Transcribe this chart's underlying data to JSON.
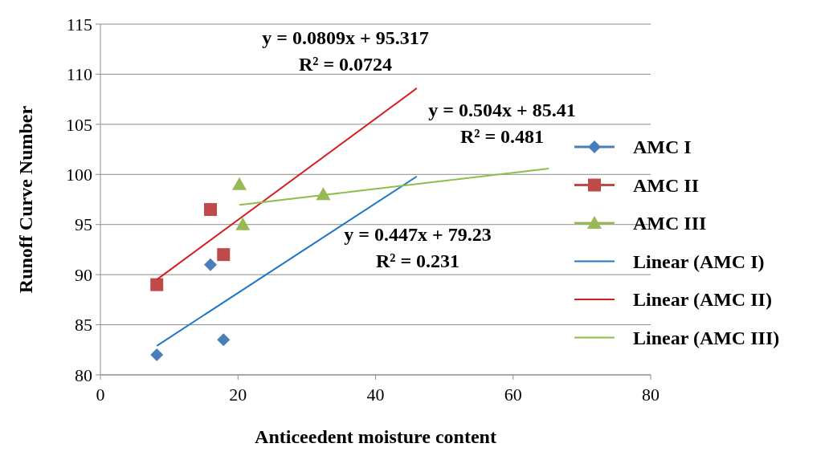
{
  "chart_data": {
    "type": "scatter",
    "xlabel": "Anticeedent moisture content",
    "ylabel": "Runoff Curve Number",
    "xlim": [
      0,
      80
    ],
    "xticks": [
      0,
      20,
      40,
      60,
      80
    ],
    "ylim": [
      80,
      115
    ],
    "yticks": [
      80,
      85,
      90,
      95,
      100,
      105,
      110,
      115
    ],
    "grid": "y",
    "legend": "right",
    "series": [
      {
        "name": "AMC I",
        "color": "#4a7ebb",
        "marker": "diamond",
        "x": [
          8.2,
          16,
          17.9
        ],
        "values": [
          82,
          91,
          83.5
        ]
      },
      {
        "name": "AMC II",
        "color": "#be4b48",
        "marker": "square",
        "x": [
          8.2,
          16,
          17.9
        ],
        "values": [
          89,
          96.5,
          92
        ]
      },
      {
        "name": "AMC III",
        "color": "#98b954",
        "marker": "triangle",
        "x": [
          20.2,
          20.7,
          32.4
        ],
        "values": [
          99,
          95,
          98
        ]
      },
      {
        "name": "Linear (AMC I)",
        "type": "line",
        "color": "#1f77c4",
        "marker": "none",
        "x": [
          8.2,
          46
        ],
        "values": [
          82.9,
          99.8
        ]
      },
      {
        "name": "Linear (AMC II)",
        "type": "line",
        "color": "#d62020",
        "marker": "none",
        "x": [
          8.2,
          46
        ],
        "values": [
          89.5,
          108.6
        ]
      },
      {
        "name": "Linear (AMC III)",
        "type": "line",
        "color": "#8fbf4a",
        "marker": "none",
        "x": [
          20.2,
          65.2
        ],
        "values": [
          96.95,
          100.59
        ]
      }
    ],
    "annotations": [
      "y = 0.0809x + 95.317",
      "R² = 0.0724",
      "y = 0.504x + 85.41",
      "R² = 0.481",
      "y = 0.447x + 79.23",
      "R² = 0.231"
    ]
  }
}
